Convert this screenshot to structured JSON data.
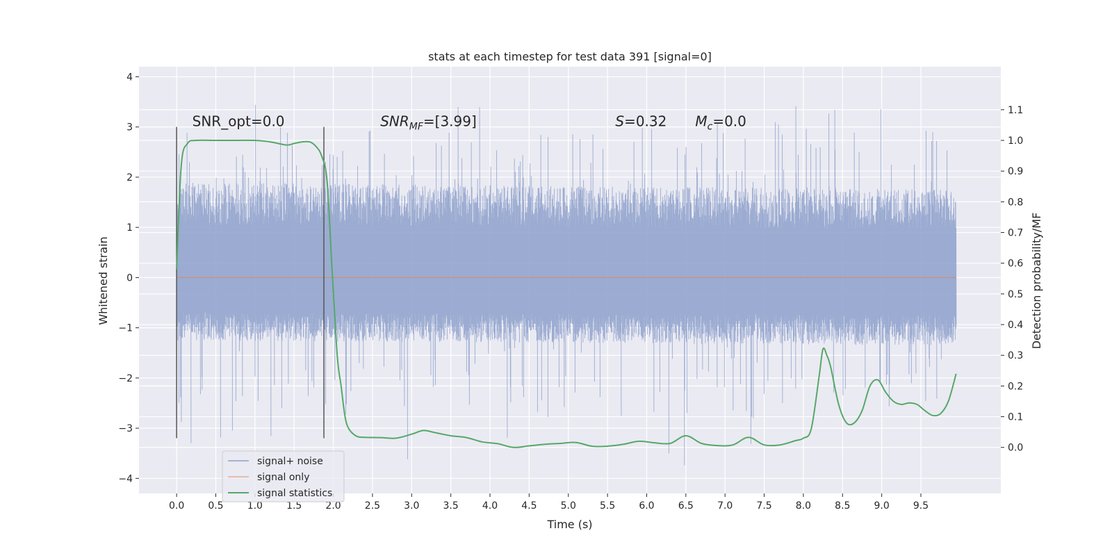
{
  "chart_data": {
    "type": "line",
    "title": "stats at each timestep for test data 391 [signal=0]",
    "xlabel": "Time (s)",
    "ylabel": "Whitened strain",
    "y2label": "Detection probability/MF",
    "xlim": [
      -0.48,
      10.52
    ],
    "ylim": [
      -4.3,
      4.2
    ],
    "y2lim": [
      -0.15,
      1.24
    ],
    "x_ticks": [
      "0.0",
      "0.5",
      "1.0",
      "1.5",
      "2.0",
      "2.5",
      "3.0",
      "3.5",
      "4.0",
      "4.5",
      "5.0",
      "5.5",
      "6.0",
      "6.5",
      "7.0",
      "7.5",
      "8.0",
      "8.5",
      "9.0",
      "9.5"
    ],
    "y_ticks": [
      "4",
      "3",
      "2",
      "1",
      "0",
      "−1",
      "−2",
      "−3",
      "−4"
    ],
    "y2_ticks": [
      "1.1",
      "1.0",
      "0.9",
      "0.8",
      "0.7",
      "0.6",
      "0.5",
      "0.4",
      "0.3",
      "0.2",
      "0.1",
      "0.0"
    ],
    "grid": true,
    "legend_position": "lower-left",
    "window_markers_x": [
      0.0,
      1.88
    ],
    "window_markers_y": [
      -3.2,
      3.0
    ],
    "series": [
      {
        "name": "signal+ noise",
        "color": "#8da0cb",
        "axis": "left",
        "envelope": {
          "x": [
            0.0,
            9.95
          ],
          "upper": [
            1.9,
            1.75
          ],
          "lower": [
            -1.25,
            -1.35
          ],
          "spike_max": [
            3.8,
            -4.05
          ]
        }
      },
      {
        "name": "signal only",
        "color": "#dd8452",
        "axis": "left",
        "x": [
          0.0,
          9.95
        ],
        "values": [
          0.0,
          0.0
        ]
      },
      {
        "name": "signal statistics",
        "color": "#55a868",
        "axis": "right",
        "x": [
          0.0,
          0.06,
          0.14,
          0.25,
          0.5,
          0.75,
          1.0,
          1.2,
          1.4,
          1.5,
          1.6,
          1.7,
          1.78,
          1.85,
          1.92,
          1.98,
          2.05,
          2.1,
          2.15,
          2.2,
          2.3,
          2.4,
          2.6,
          2.8,
          3.0,
          3.15,
          3.3,
          3.5,
          3.7,
          3.9,
          4.1,
          4.3,
          4.5,
          4.7,
          4.9,
          5.1,
          5.3,
          5.5,
          5.7,
          5.9,
          6.1,
          6.3,
          6.5,
          6.7,
          6.9,
          7.1,
          7.3,
          7.5,
          7.7,
          7.9,
          8.0,
          8.1,
          8.2,
          8.25,
          8.3,
          8.35,
          8.45,
          8.55,
          8.65,
          8.75,
          8.85,
          8.95,
          9.05,
          9.15,
          9.25,
          9.35,
          9.45,
          9.55,
          9.65,
          9.75,
          9.85,
          9.95
        ],
        "values": [
          0.58,
          0.92,
          0.99,
          1.0,
          1.0,
          1.0,
          1.0,
          0.995,
          0.985,
          0.99,
          0.995,
          0.995,
          0.98,
          0.95,
          0.87,
          0.6,
          0.3,
          0.2,
          0.1,
          0.06,
          0.036,
          0.033,
          0.032,
          0.03,
          0.043,
          0.055,
          0.048,
          0.038,
          0.032,
          0.018,
          0.012,
          0.0,
          0.005,
          0.01,
          0.013,
          0.016,
          0.004,
          0.004,
          0.01,
          0.02,
          0.015,
          0.013,
          0.038,
          0.013,
          0.006,
          0.008,
          0.033,
          0.008,
          0.008,
          0.022,
          0.03,
          0.06,
          0.23,
          0.32,
          0.3,
          0.26,
          0.14,
          0.08,
          0.08,
          0.12,
          0.2,
          0.22,
          0.18,
          0.15,
          0.14,
          0.145,
          0.14,
          0.12,
          0.104,
          0.11,
          0.15,
          0.24
        ]
      }
    ],
    "annotations": [
      {
        "x": 0.2,
        "y": 3.0,
        "text": "SNR_opt=0.0"
      },
      {
        "x": 2.6,
        "y": 3.0,
        "main": "SNR",
        "sub": "MF",
        "rest": "=[3.99]"
      },
      {
        "x": 5.6,
        "y": 3.0,
        "main": "S",
        "rest": "=0.32"
      },
      {
        "x": 6.62,
        "y": 3.0,
        "main": "M",
        "sub": "c",
        "rest": "=0.0"
      }
    ]
  }
}
